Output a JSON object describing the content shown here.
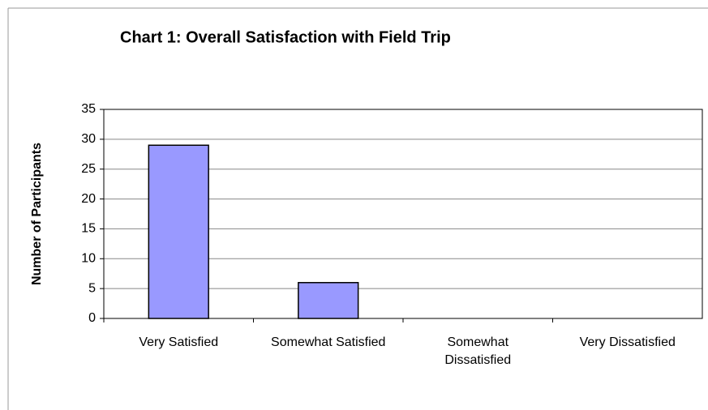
{
  "chart_data": {
    "type": "bar",
    "title": "Chart 1: Overall Satisfaction with Field Trip",
    "y_label": "Number of Participants",
    "categories": [
      "Very Satisfied",
      "Somewhat Satisfied",
      "Somewhat Dissatisfied",
      "Very Dissatisfied"
    ],
    "values": [
      29,
      6,
      0,
      0
    ],
    "color": "#9999ff",
    "ylim": [
      0,
      35
    ],
    "yticks": [
      0,
      5,
      10,
      15,
      20,
      25,
      30,
      35
    ],
    "grid": true
  }
}
